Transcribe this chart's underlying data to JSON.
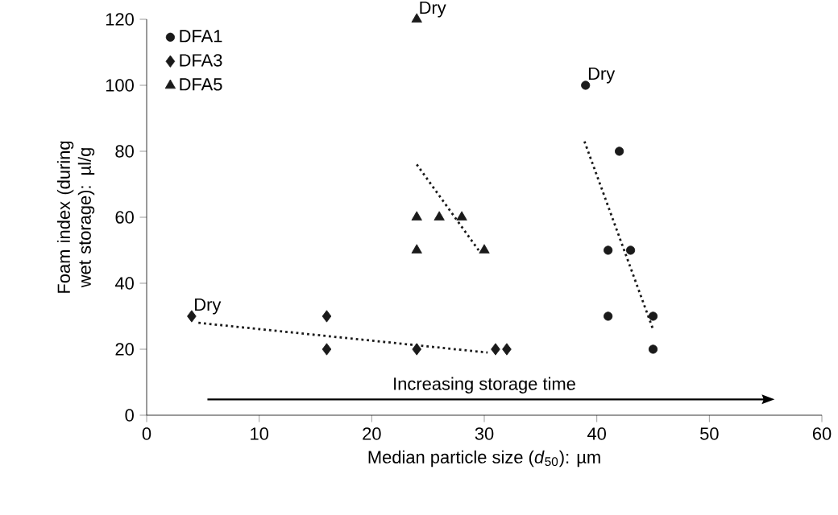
{
  "chart_data": {
    "type": "scatter",
    "xlabel": "Median particle size (*d*$_{50}$): µm",
    "ylabel": "Foam index (during wet storage): µl/g",
    "xlim": [
      0,
      60
    ],
    "ylim": [
      0,
      120
    ],
    "xticks": [
      0,
      10,
      20,
      30,
      40,
      50,
      60
    ],
    "yticks": [
      0,
      20,
      40,
      60,
      80,
      100,
      120
    ],
    "legend": "top left",
    "grid": false,
    "series": [
      {
        "name": "DFA1",
        "color": "#1a1a1a",
        "marker": "circle",
        "x": [
          39,
          42,
          41,
          43,
          41,
          45,
          45
        ],
        "values": [
          100,
          80,
          50,
          50,
          30,
          30,
          20
        ]
      },
      {
        "name": "DFA3",
        "color": "#1a1a1a",
        "marker": "diamond",
        "x": [
          4,
          16,
          16,
          24,
          31,
          32
        ],
        "values": [
          30,
          30,
          20,
          20,
          20,
          20
        ]
      },
      {
        "name": "DFA5",
        "color": "#1a1a1a",
        "marker": "triangle",
        "x": [
          24,
          24,
          24,
          26,
          28,
          30
        ],
        "values": [
          120,
          60,
          50,
          60,
          60,
          50
        ]
      },
      {
        "type": "line",
        "color": "#1a1a1a",
        "line_style": "dotted",
        "marker": "none",
        "x": [
          38.9,
          45
        ],
        "values": [
          83,
          26
        ]
      },
      {
        "type": "line",
        "color": "#1a1a1a",
        "line_style": "dotted",
        "marker": "none",
        "x": [
          4.6,
          30.3
        ],
        "values": [
          28,
          19
        ]
      },
      {
        "type": "line",
        "color": "#1a1a1a",
        "line_style": "dotted",
        "marker": "none",
        "x": [
          24,
          29.5
        ],
        "values": [
          76,
          50
        ]
      }
    ],
    "annotations": [
      {
        "text": "Dry",
        "x": 39,
        "y": 100
      },
      {
        "text": "Dry",
        "x": 24,
        "y": 120
      },
      {
        "text": "Dry",
        "x": 4,
        "y": 30
      },
      "Increasing storage time"
    ]
  }
}
